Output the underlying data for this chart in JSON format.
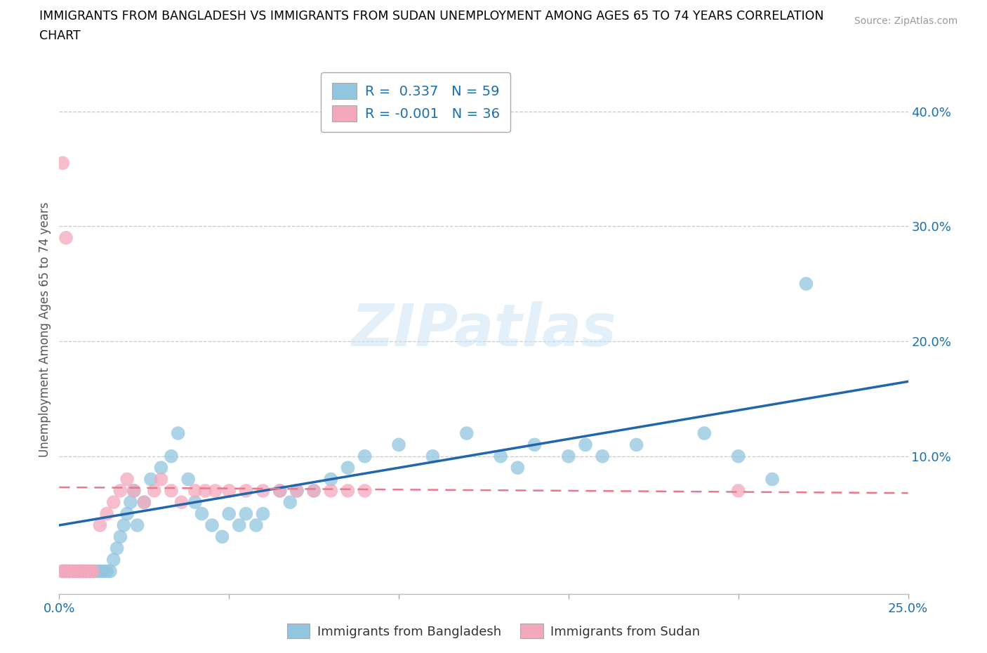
{
  "title_line1": "IMMIGRANTS FROM BANGLADESH VS IMMIGRANTS FROM SUDAN UNEMPLOYMENT AMONG AGES 65 TO 74 YEARS CORRELATION",
  "title_line2": "CHART",
  "source": "Source: ZipAtlas.com",
  "ylabel": "Unemployment Among Ages 65 to 74 years",
  "xlim": [
    0.0,
    0.25
  ],
  "ylim": [
    -0.02,
    0.44
  ],
  "x_ticks": [
    0.0,
    0.05,
    0.1,
    0.15,
    0.2,
    0.25
  ],
  "y_ticks": [
    0.0,
    0.1,
    0.2,
    0.3,
    0.4
  ],
  "grid_color": "#c8c8c8",
  "background_color": "#ffffff",
  "watermark_text": "ZIPatlas",
  "legend_r1": "R =  0.337   N = 59",
  "legend_r2": "R = -0.001   N = 36",
  "blue_color": "#92c5de",
  "pink_color": "#f4a8bc",
  "blue_line_color": "#2166ac",
  "pink_line_color": "#e8788a",
  "legend_text_color": "#1a6faf",
  "blue_scatter_x": [
    0.001,
    0.002,
    0.003,
    0.004,
    0.005,
    0.006,
    0.007,
    0.008,
    0.009,
    0.01,
    0.011,
    0.012,
    0.013,
    0.014,
    0.015,
    0.016,
    0.017,
    0.018,
    0.019,
    0.02,
    0.021,
    0.022,
    0.023,
    0.025,
    0.027,
    0.03,
    0.033,
    0.035,
    0.038,
    0.04,
    0.042,
    0.045,
    0.048,
    0.05,
    0.053,
    0.055,
    0.058,
    0.06,
    0.065,
    0.068,
    0.07,
    0.075,
    0.08,
    0.085,
    0.09,
    0.1,
    0.11,
    0.12,
    0.13,
    0.14,
    0.155,
    0.17,
    0.19,
    0.2,
    0.21,
    0.22,
    0.135,
    0.15,
    0.16
  ],
  "blue_scatter_y": [
    0.0,
    0.0,
    0.0,
    0.0,
    0.0,
    0.0,
    0.0,
    0.0,
    0.0,
    0.0,
    0.0,
    0.0,
    0.0,
    0.0,
    0.0,
    0.01,
    0.02,
    0.03,
    0.04,
    0.05,
    0.06,
    0.07,
    0.04,
    0.06,
    0.08,
    0.09,
    0.1,
    0.12,
    0.08,
    0.06,
    0.05,
    0.04,
    0.03,
    0.05,
    0.04,
    0.05,
    0.04,
    0.05,
    0.07,
    0.06,
    0.07,
    0.07,
    0.08,
    0.09,
    0.1,
    0.11,
    0.1,
    0.12,
    0.1,
    0.11,
    0.11,
    0.11,
    0.12,
    0.1,
    0.08,
    0.25,
    0.09,
    0.1,
    0.1
  ],
  "pink_scatter_x": [
    0.001,
    0.002,
    0.003,
    0.004,
    0.005,
    0.006,
    0.007,
    0.008,
    0.009,
    0.01,
    0.012,
    0.014,
    0.016,
    0.018,
    0.02,
    0.022,
    0.025,
    0.028,
    0.03,
    0.033,
    0.036,
    0.04,
    0.043,
    0.046,
    0.05,
    0.055,
    0.06,
    0.065,
    0.07,
    0.075,
    0.08,
    0.085,
    0.09,
    0.2,
    0.001,
    0.002
  ],
  "pink_scatter_y": [
    0.0,
    0.0,
    0.0,
    0.0,
    0.0,
    0.0,
    0.0,
    0.0,
    0.0,
    0.0,
    0.04,
    0.05,
    0.06,
    0.07,
    0.08,
    0.07,
    0.06,
    0.07,
    0.08,
    0.07,
    0.06,
    0.07,
    0.07,
    0.07,
    0.07,
    0.07,
    0.07,
    0.07,
    0.07,
    0.07,
    0.07,
    0.07,
    0.07,
    0.07,
    0.355,
    0.29
  ],
  "blue_trendline_x": [
    0.0,
    0.25
  ],
  "blue_trendline_y": [
    0.04,
    0.165
  ],
  "pink_trendline_x": [
    0.0,
    0.25
  ],
  "pink_trendline_y": [
    0.073,
    0.068
  ]
}
